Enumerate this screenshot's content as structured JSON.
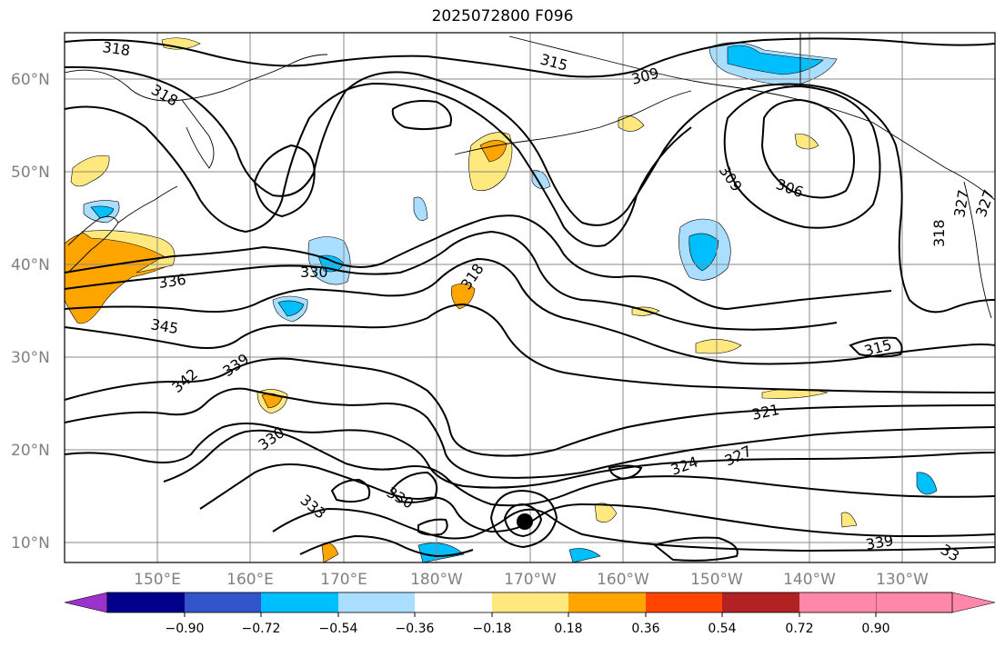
{
  "title": "2025072800 F096",
  "lat_labels": [
    "10°N",
    "20°N",
    "30°N",
    "40°N",
    "50°N",
    "60°N"
  ],
  "lon_labels": [
    "150°E",
    "160°E",
    "170°E",
    "180°W",
    "170°W",
    "160°W",
    "150°W",
    "140°W",
    "130°W"
  ],
  "contour_labels": [
    "318",
    "318",
    "315",
    "309",
    "309",
    "306",
    "336",
    "330",
    "318",
    "345",
    "342",
    "339",
    "330",
    "330",
    "333",
    "321",
    "324",
    "327",
    "315",
    "339",
    "318",
    "327",
    "327",
    "33"
  ],
  "colorbar": {
    "colors": [
      "#9933cc",
      "#00008b",
      "#3355cc",
      "#00bfff",
      "#aadeff",
      "#ffffff",
      "#ffe97f",
      "#ffa500",
      "#ff4500",
      "#b22222",
      "#ff88aa"
    ],
    "tick_labels": [
      "−0.90",
      "−0.72",
      "−0.54",
      "−0.36",
      "−0.18",
      "0.18",
      "0.36",
      "0.54",
      "0.72",
      "0.90"
    ]
  }
}
